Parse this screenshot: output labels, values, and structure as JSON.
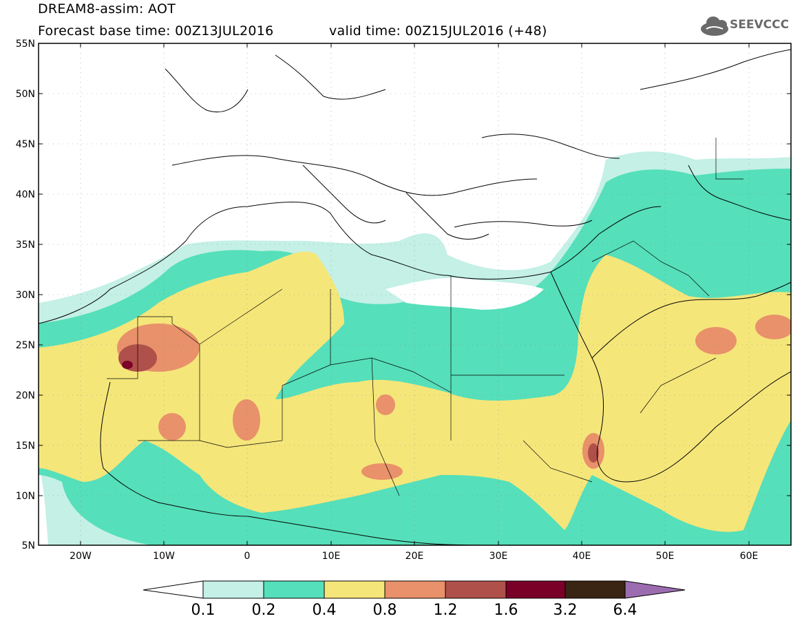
{
  "header": {
    "title": "DREAM8-assim: AOT",
    "base_time": "Forecast base time: 00Z13JUL2016",
    "valid_time": "valid time: 00Z15JUL2016 (+48)",
    "logo_text": "SEEVCCC"
  },
  "map": {
    "lat_range": [
      5,
      55
    ],
    "lon_range": [
      -25,
      65
    ],
    "lat_labels": [
      "55N",
      "50N",
      "45N",
      "40N",
      "35N",
      "30N",
      "25N",
      "20N",
      "15N",
      "10N",
      "5N"
    ],
    "lon_labels": [
      "20W",
      "10W",
      "0",
      "10E",
      "20E",
      "30E",
      "40E",
      "50E",
      "60E"
    ]
  },
  "legend": {
    "labels": [
      "0.1",
      "0.2",
      "0.4",
      "0.8",
      "1.2",
      "1.6",
      "3.2",
      "6.4"
    ],
    "colors": [
      "#ffffff",
      "#c4f0e6",
      "#55dfba",
      "#f5e67a",
      "#e8916a",
      "#b0504a",
      "#7a0028",
      "#3a2414",
      "#9c6cb0"
    ]
  },
  "colors": {
    "c1": "#c4f0e6",
    "c2": "#55dfba",
    "c3": "#f5e67a",
    "c4": "#e8916a",
    "c5": "#b0504a",
    "c6": "#7a0028"
  }
}
